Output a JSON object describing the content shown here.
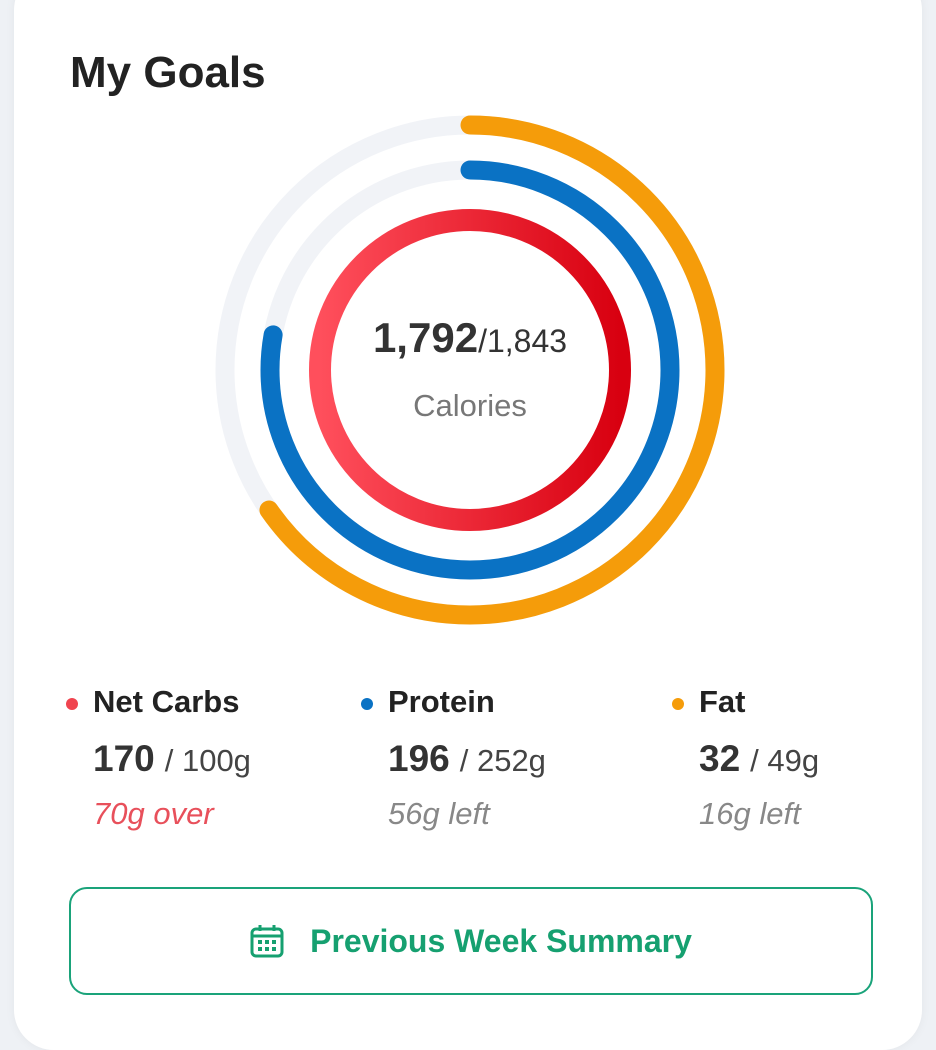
{
  "header": {
    "title": "My Goals"
  },
  "calories": {
    "consumed": "1,792",
    "goal": "/1,843",
    "label": "Calories"
  },
  "macros": [
    {
      "name": "Net Carbs",
      "consumed": "170",
      "goal": "/ 100g",
      "status": "70g over",
      "color": "#f0444f",
      "status_color": "#e8505b"
    },
    {
      "name": "Protein",
      "consumed": "196",
      "goal": "/ 252g",
      "status": "56g left",
      "color": "#0a72c4",
      "status_color": "#888888"
    },
    {
      "name": "Fat",
      "consumed": "32",
      "goal": "/ 49g",
      "status": "16g left",
      "color": "#f59c0a",
      "status_color": "#888888"
    }
  ],
  "button": {
    "label": "Previous Week Summary"
  }
}
